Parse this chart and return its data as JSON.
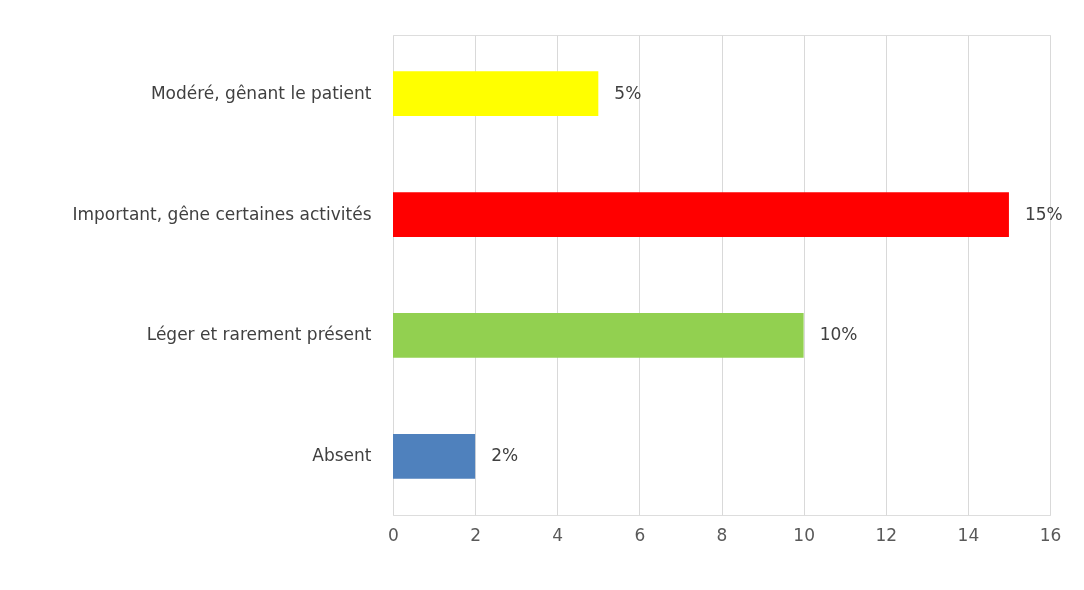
{
  "chart_data": {
    "type": "bar",
    "orientation": "horizontal",
    "categories": [
      "Modéré, gênant le patient",
      "Important, gêne certaines activités",
      "Léger et rarement présent",
      "Absent"
    ],
    "values": [
      5,
      15,
      10,
      2
    ],
    "colors": [
      "#ffff00",
      "#ff0000",
      "#92d050",
      "#4f81bd"
    ],
    "value_labels": [
      "5%",
      "15%",
      "10%",
      "2%"
    ],
    "xlim": [
      0,
      16
    ],
    "xticks": [
      0,
      2,
      4,
      6,
      8,
      10,
      12,
      14,
      16
    ],
    "grid": "x"
  }
}
